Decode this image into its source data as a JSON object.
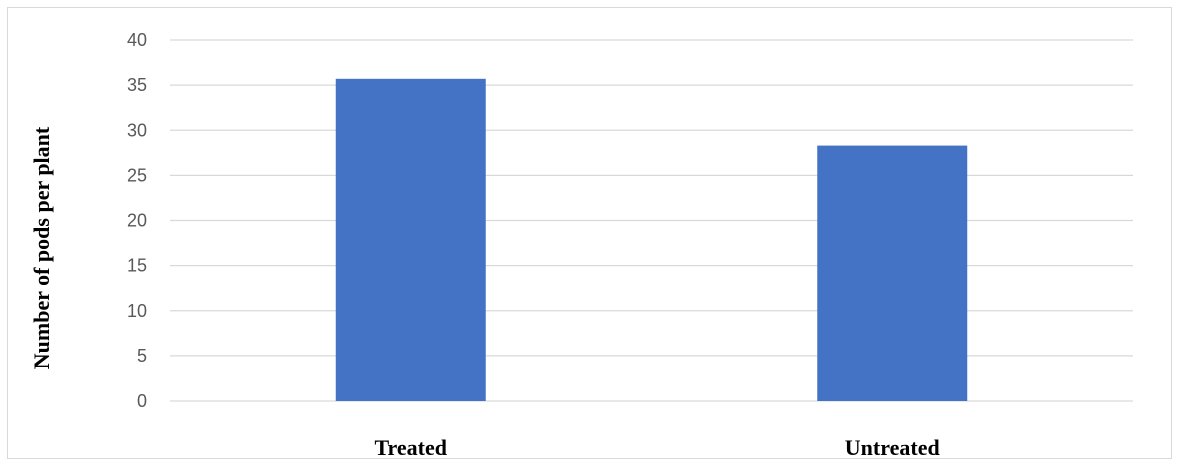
{
  "chart_data": {
    "type": "bar",
    "categories": [
      "Treated",
      "Untreated"
    ],
    "values": [
      35.7,
      28.3
    ],
    "title": "",
    "xlabel": "",
    "ylabel": "Number of pods per plant",
    "ylim": [
      0,
      40
    ],
    "yticks": [
      0,
      5,
      10,
      15,
      20,
      25,
      30,
      35,
      40
    ],
    "grid": true,
    "legend": "none",
    "colors": {
      "bar": "#4472c4",
      "grid": "#d9d9d9",
      "axis": "#d9d9d9"
    }
  }
}
